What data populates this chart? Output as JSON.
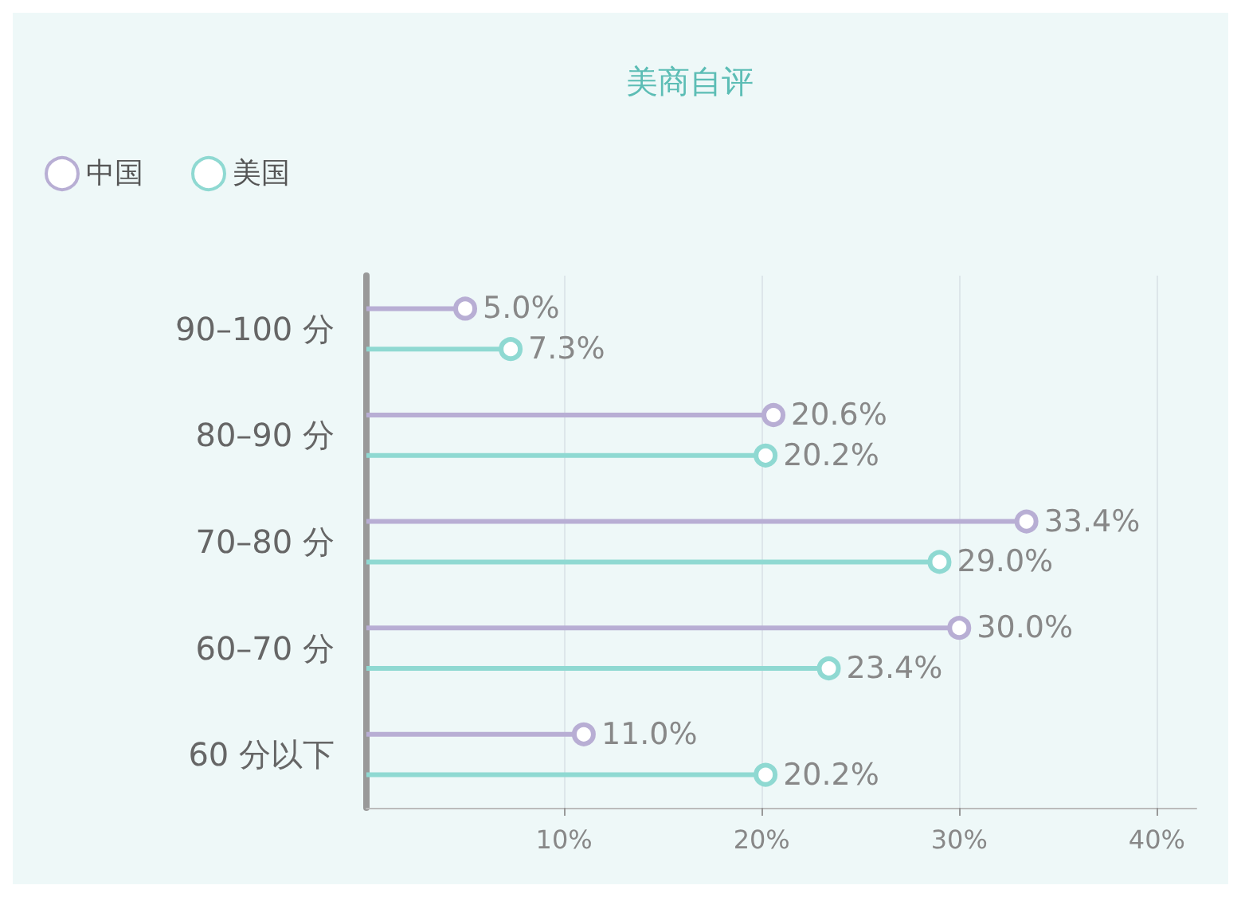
{
  "chart_data": {
    "type": "lollipop",
    "title": "美商自评",
    "orientation": "horizontal",
    "categories": [
      "90–100 分",
      "80–90 分",
      "70–80 分",
      "60–70 分",
      "60 分以下"
    ],
    "series": [
      {
        "name": "中国",
        "color": "#b8aed4",
        "values": [
          5.0,
          20.6,
          33.4,
          30.0,
          11.0
        ],
        "value_labels": [
          "5.0%",
          "20.6%",
          "33.4%",
          "30.0%",
          "11.0%"
        ]
      },
      {
        "name": "美国",
        "color": "#8fd9d2",
        "values": [
          7.3,
          20.2,
          29.0,
          23.4,
          20.2
        ],
        "value_labels": [
          "7.3%",
          "20.2%",
          "29.0%",
          "23.4%",
          "20.2%"
        ]
      }
    ],
    "xlim": [
      0,
      42
    ],
    "xticks": [
      {
        "value": 10,
        "label": "10%"
      },
      {
        "value": 20,
        "label": "20%"
      },
      {
        "value": 30,
        "label": "30%"
      },
      {
        "value": 40,
        "label": "40%"
      }
    ],
    "grid": "x",
    "legend": "top left",
    "marker": "circle"
  }
}
